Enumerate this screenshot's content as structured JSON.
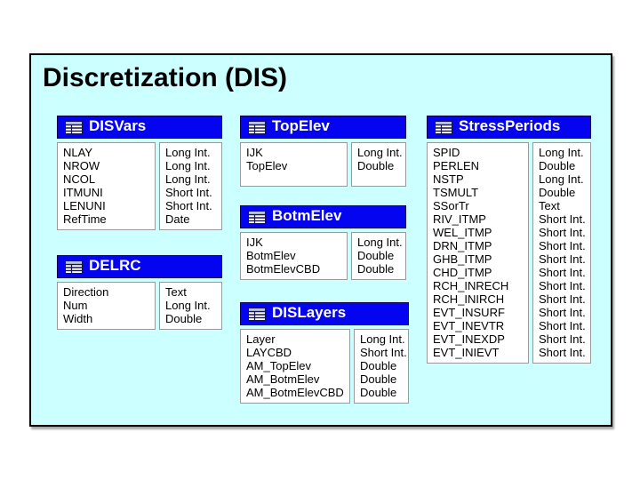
{
  "slide": {
    "title": "Discretization (DIS)"
  },
  "colors": {
    "panel_bg": "#ccffff",
    "panel_border": "#000000",
    "header_bg": "#0404f0",
    "header_text": "#ffffff",
    "cell_bg": "#ffffff",
    "cell_border": "#999999",
    "text": "#000000"
  },
  "tables": [
    {
      "name": "DISVars",
      "icon": "table-icon",
      "fields": [
        {
          "name": "NLAY",
          "type": "Long Int."
        },
        {
          "name": "NROW",
          "type": "Long Int."
        },
        {
          "name": "NCOL",
          "type": "Long Int."
        },
        {
          "name": "ITMUNI",
          "type": "Short Int."
        },
        {
          "name": "LENUNI",
          "type": "Short Int."
        },
        {
          "name": "RefTime",
          "type": "Date"
        }
      ]
    },
    {
      "name": "DELRC",
      "icon": "table-icon",
      "fields": [
        {
          "name": "Direction",
          "type": "Text"
        },
        {
          "name": "Num",
          "type": "Long Int."
        },
        {
          "name": "Width",
          "type": "Double"
        }
      ]
    },
    {
      "name": "TopElev",
      "icon": "table-icon",
      "fields": [
        {
          "name": "IJK",
          "type": "Long Int."
        },
        {
          "name": "TopElev",
          "type": "Double"
        }
      ]
    },
    {
      "name": "BotmElev",
      "icon": "table-icon",
      "fields": [
        {
          "name": "IJK",
          "type": "Long Int."
        },
        {
          "name": "BotmElev",
          "type": "Double"
        },
        {
          "name": "BotmElevCBD",
          "type": "Double"
        }
      ]
    },
    {
      "name": "DISLayers",
      "icon": "table-icon",
      "fields": [
        {
          "name": "Layer",
          "type": "Long Int."
        },
        {
          "name": "LAYCBD",
          "type": "Short Int."
        },
        {
          "name": "AM_TopElev",
          "type": "Double"
        },
        {
          "name": "AM_BotmElev",
          "type": "Double"
        },
        {
          "name": "AM_BotmElevCBD",
          "type": "Double"
        }
      ]
    },
    {
      "name": "StressPeriods",
      "icon": "table-icon",
      "fields": [
        {
          "name": "SPID",
          "type": "Long Int."
        },
        {
          "name": "PERLEN",
          "type": "Double"
        },
        {
          "name": "NSTP",
          "type": "Long Int."
        },
        {
          "name": "TSMULT",
          "type": "Double"
        },
        {
          "name": "SSorTr",
          "type": "Text"
        },
        {
          "name": "RIV_ITMP",
          "type": "Short Int."
        },
        {
          "name": "WEL_ITMP",
          "type": "Short Int."
        },
        {
          "name": "DRN_ITMP",
          "type": "Short Int."
        },
        {
          "name": "GHB_ITMP",
          "type": "Short Int."
        },
        {
          "name": "CHD_ITMP",
          "type": "Short Int."
        },
        {
          "name": "RCH_INRECH",
          "type": "Short Int."
        },
        {
          "name": "RCH_INIRCH",
          "type": "Short Int."
        },
        {
          "name": "EVT_INSURF",
          "type": "Short Int."
        },
        {
          "name": "EVT_INEVTR",
          "type": "Short Int."
        },
        {
          "name": "EVT_INEXDP",
          "type": "Short Int."
        },
        {
          "name": "EVT_INIEVT",
          "type": "Short Int."
        }
      ]
    }
  ]
}
